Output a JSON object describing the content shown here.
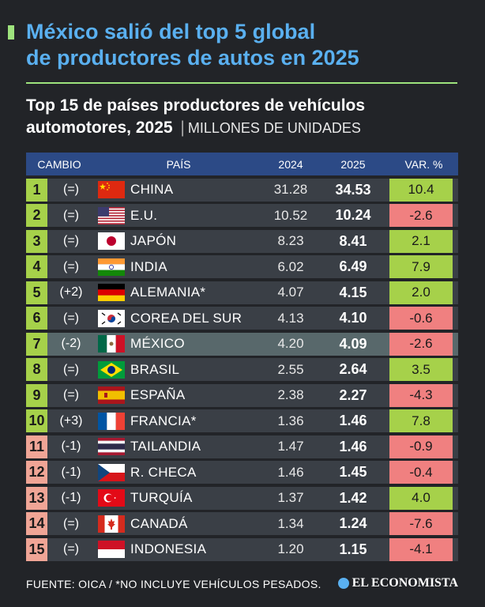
{
  "headline": [
    "México salió del top 5 global",
    "de productores de autos en 2025"
  ],
  "subtitle": {
    "line1": "Top 15 de países productores de vehículos",
    "line2": "automotores, 2025",
    "separator": "|",
    "units": "MILLONES DE UNIDADES"
  },
  "colors": {
    "headline": "#5ab0f0",
    "accent": "#9ee37d",
    "header_bg": "#2c4a86",
    "positive": "#a6d14a",
    "negative": "#f08080",
    "rank_top10": "#a6d14a",
    "rank_bottom": "#f0a596"
  },
  "chart_data": {
    "type": "table",
    "title": "Top 15 de países productores de vehículos automotores, 2025",
    "units": "MILLONES DE UNIDADES",
    "columns": [
      "CAMBIO",
      "PAÍS",
      "2024",
      "2025",
      "VAR. %"
    ],
    "rows": [
      {
        "rank": "1",
        "cambio": "(=)",
        "flag": "china-flag-icon",
        "pais": "CHINA",
        "v2024": "31.28",
        "v2025": "34.53",
        "var": "10.4",
        "var_sign": "positive"
      },
      {
        "rank": "2",
        "cambio": "(=)",
        "flag": "usa-flag-icon",
        "pais": "E.U.",
        "v2024": "10.52",
        "v2025": "10.24",
        "var": "-2.6",
        "var_sign": "negative"
      },
      {
        "rank": "3",
        "cambio": "(=)",
        "flag": "japan-flag-icon",
        "pais": "JAPÓN",
        "v2024": "8.23",
        "v2025": "8.41",
        "var": "2.1",
        "var_sign": "positive"
      },
      {
        "rank": "4",
        "cambio": "(=)",
        "flag": "india-flag-icon",
        "pais": "INDIA",
        "v2024": "6.02",
        "v2025": "6.49",
        "var": "7.9",
        "var_sign": "positive"
      },
      {
        "rank": "5",
        "cambio": "(+2)",
        "flag": "germany-flag-icon",
        "pais": "ALEMANIA*",
        "v2024": "4.07",
        "v2025": "4.15",
        "var": "2.0",
        "var_sign": "positive"
      },
      {
        "rank": "6",
        "cambio": "(=)",
        "flag": "korea-flag-icon",
        "pais": "COREA DEL SUR",
        "v2024": "4.13",
        "v2025": "4.10",
        "var": "-0.6",
        "var_sign": "negative"
      },
      {
        "rank": "7",
        "cambio": "(-2)",
        "flag": "mexico-flag-icon",
        "pais": "MÉXICO",
        "v2024": "4.20",
        "v2025": "4.09",
        "var": "-2.6",
        "var_sign": "negative",
        "highlight": true
      },
      {
        "rank": "8",
        "cambio": "(=)",
        "flag": "brazil-flag-icon",
        "pais": "BRASIL",
        "v2024": "2.55",
        "v2025": "2.64",
        "var": "3.5",
        "var_sign": "positive"
      },
      {
        "rank": "9",
        "cambio": "(=)",
        "flag": "spain-flag-icon",
        "pais": "ESPAÑA",
        "v2024": "2.38",
        "v2025": "2.27",
        "var": "-4.3",
        "var_sign": "negative"
      },
      {
        "rank": "10",
        "cambio": "(+3)",
        "flag": "france-flag-icon",
        "pais": "FRANCIA*",
        "v2024": "1.36",
        "v2025": "1.46",
        "var": "7.8",
        "var_sign": "positive"
      },
      {
        "rank": "11",
        "cambio": "(-1)",
        "flag": "thailand-flag-icon",
        "pais": "TAILANDIA",
        "v2024": "1.47",
        "v2025": "1.46",
        "var": "-0.9",
        "var_sign": "negative"
      },
      {
        "rank": "12",
        "cambio": "(-1)",
        "flag": "czech-flag-icon",
        "pais": "R. CHECA",
        "v2024": "1.46",
        "v2025": "1.45",
        "var": "-0.4",
        "var_sign": "negative"
      },
      {
        "rank": "13",
        "cambio": "(-1)",
        "flag": "turkey-flag-icon",
        "pais": "TURQUÍA",
        "v2024": "1.37",
        "v2025": "1.42",
        "var": "4.0",
        "var_sign": "positive"
      },
      {
        "rank": "14",
        "cambio": "(=)",
        "flag": "canada-flag-icon",
        "pais": "CANADÁ",
        "v2024": "1.34",
        "v2025": "1.24",
        "var": "-7.6",
        "var_sign": "negative"
      },
      {
        "rank": "15",
        "cambio": "(=)",
        "flag": "indonesia-flag-icon",
        "pais": "INDONESIA",
        "v2024": "1.20",
        "v2025": "1.15",
        "var": "-4.1",
        "var_sign": "negative"
      }
    ]
  },
  "footer": "FUENTE: OICA / *NO INCLUYE VEHÍCULOS PESADOS.",
  "brand": "EL ECONOMISTA"
}
